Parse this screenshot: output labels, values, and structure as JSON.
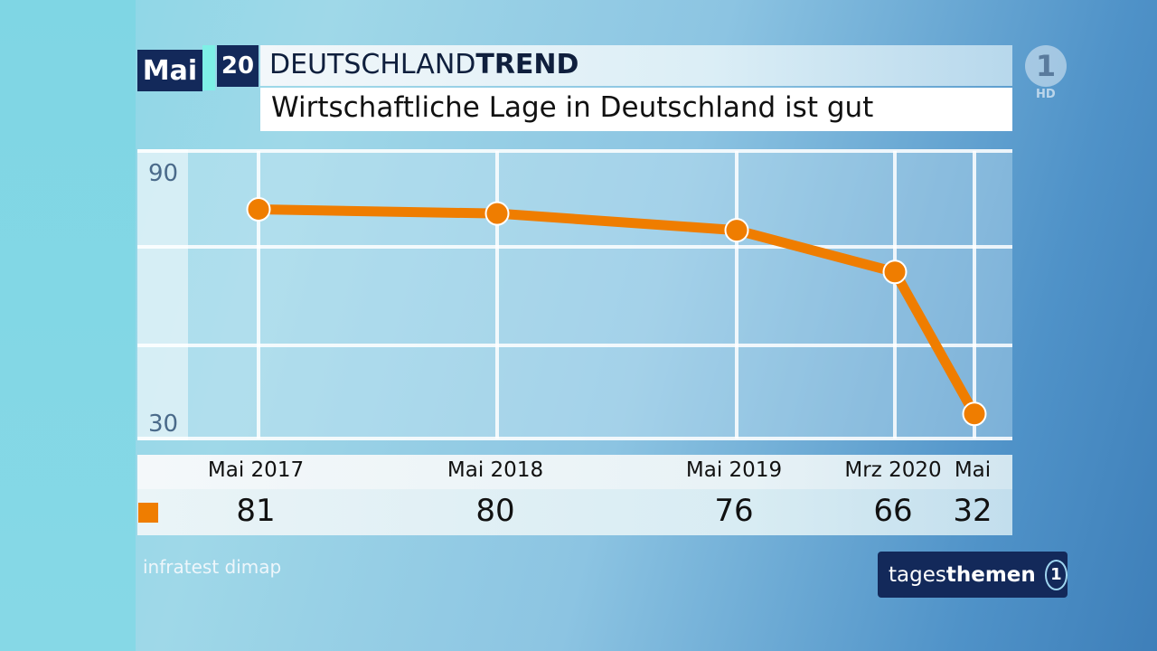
{
  "header": {
    "date_month": "Mai",
    "date_year": "20",
    "brand_light": "DEUTSCHLAND",
    "brand_bold": "TREND",
    "subtitle": "Wirtschaftliche Lage in Deutschland ist gut"
  },
  "channel": {
    "logo_glyph": "1",
    "hd_label": "HD"
  },
  "source": "infratest dimap",
  "footer_logo": {
    "light": "tages",
    "bold": "themen",
    "glyph": "1"
  },
  "colors": {
    "series": "#ef7d00",
    "navy": "#13295a"
  },
  "chart_data": {
    "type": "line",
    "title": "Wirtschaftliche Lage in Deutschland ist gut",
    "xlabel": "",
    "ylabel": "",
    "categories": [
      "Mai 2017",
      "Mai 2018",
      "Mai 2019",
      "Mrz 2020",
      "Mai"
    ],
    "y_tick_labels": [
      "90",
      "30"
    ],
    "ylim": [
      30,
      90
    ],
    "grid": true,
    "legend": "bottom-left swatch",
    "series": [
      {
        "values": [
          81,
          80,
          76,
          66,
          32
        ],
        "color": "#ef7d00"
      }
    ]
  }
}
